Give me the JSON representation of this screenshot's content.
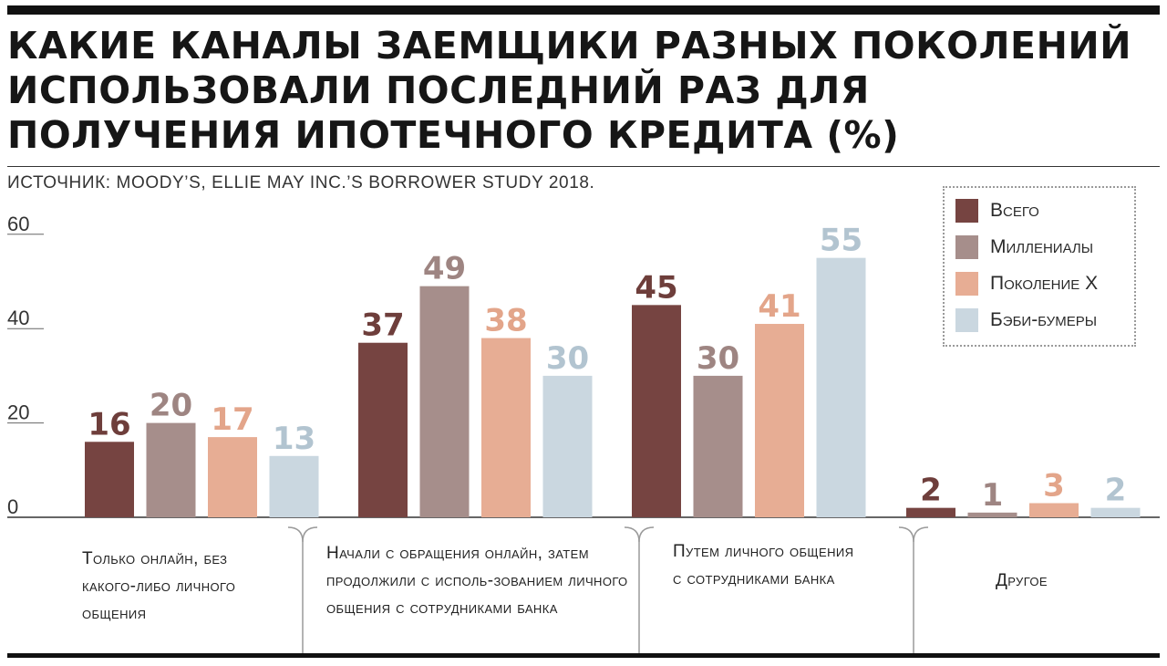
{
  "header": {
    "title": "Какие каналы заемщики разных поколений использовали последний раз для получения ипотечного кредита (%)",
    "source": "Источник: Moody’s, Ellie May Inc.’s Borrower Study 2018."
  },
  "legend": {
    "items": [
      {
        "label": "Всего",
        "color": "#764441"
      },
      {
        "label": "Миллениалы",
        "color": "#a68e8b"
      },
      {
        "label": "Поколение X",
        "color": "#e7ad94"
      },
      {
        "label": "Бэби-бумеры",
        "color": "#cad7e0"
      }
    ]
  },
  "category_labels": [
    "Только онлайн, без какого-либо личного общения",
    "Начали с обращения онлайн, затем продолжили с исполь-зованием личного общения с сотрудниками банка",
    "Путем личного общения с сотрудниками банка",
    "Другое"
  ],
  "chart_data": {
    "type": "bar",
    "title": "Какие каналы заемщики разных поколений использовали последний раз для получения ипотечного кредита (%)",
    "categories": [
      "Только онлайн, без какого-либо личного общения",
      "Начали с обращения онлайн, затем продолжили с исполь-зованием личного общения с сотрудниками банка",
      "Путем личного общения с сотрудниками банка",
      "Другое"
    ],
    "series": [
      {
        "name": "Всего",
        "color": "#764441",
        "label_color": "#6e3e3b",
        "values": [
          16,
          37,
          45,
          2
        ]
      },
      {
        "name": "Миллениалы",
        "color": "#a68e8b",
        "label_color": "#9e8582",
        "values": [
          20,
          49,
          30,
          1
        ]
      },
      {
        "name": "Поколение X",
        "color": "#e7ad94",
        "label_color": "#e3a58a",
        "values": [
          17,
          38,
          41,
          3
        ]
      },
      {
        "name": "Бэби-бумеры",
        "color": "#cad7e0",
        "label_color": "#b2c4d0",
        "values": [
          13,
          30,
          55,
          2
        ]
      }
    ],
    "yticks": [
      0,
      20,
      40,
      60
    ],
    "ylim": [
      0,
      60
    ],
    "grid": false,
    "legend_position": "top-right"
  }
}
